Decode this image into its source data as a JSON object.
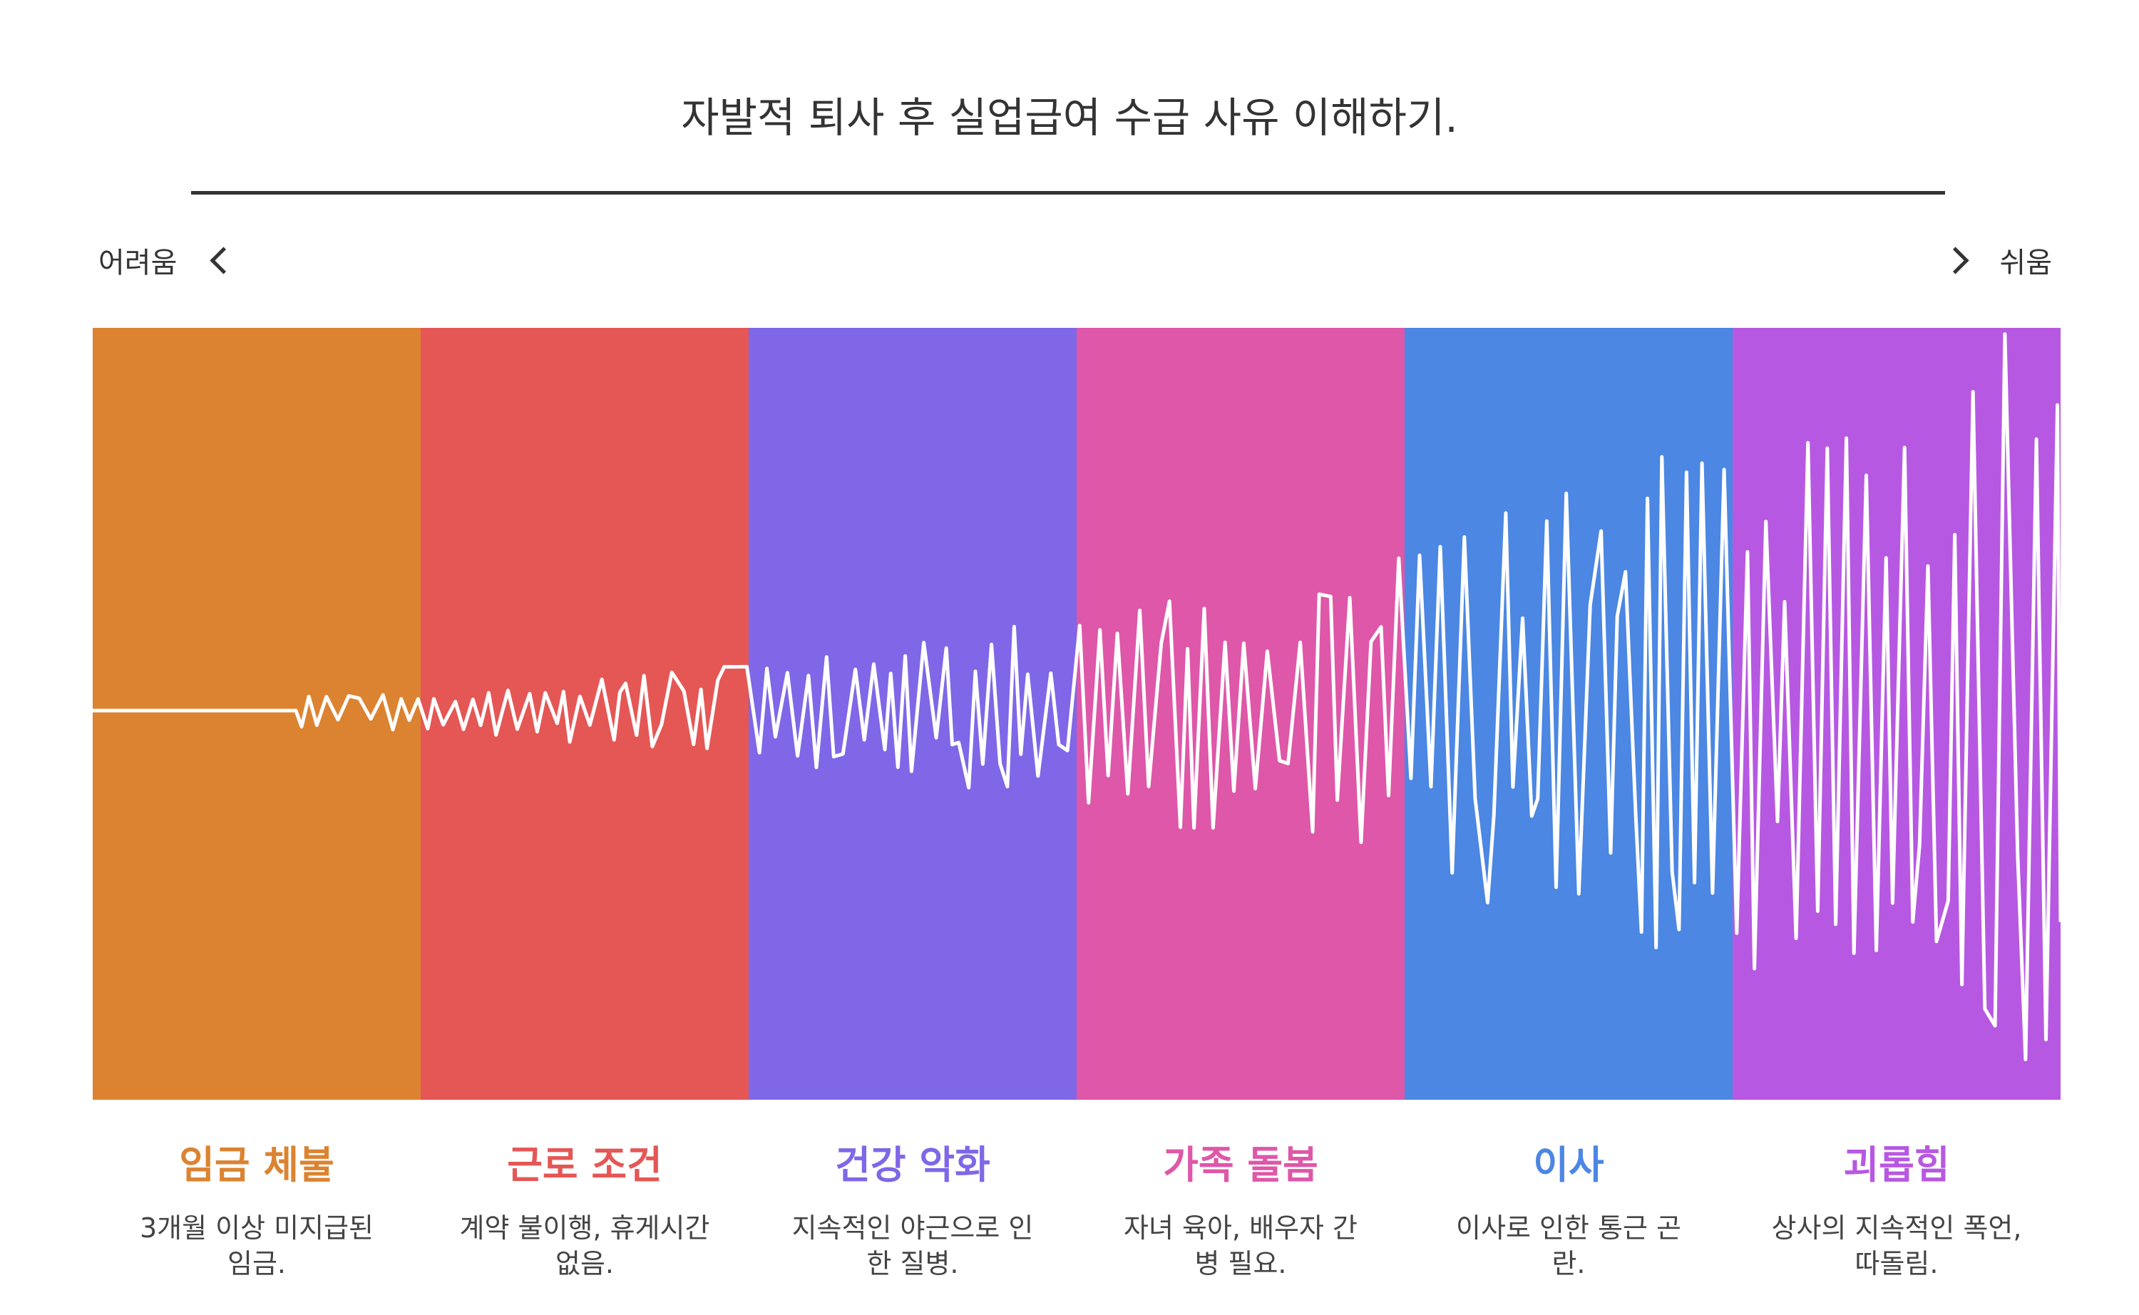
{
  "title": "자발적 퇴사 후 실업급여 수급 사유 이해하기.",
  "scale": {
    "left_label": "어려움",
    "right_label": "쉬움"
  },
  "wave_color": "#ffffff",
  "categories": [
    {
      "title": "임금 체불",
      "desc": "3개월 이상 미지급된 임금.",
      "color": "#DC8331"
    },
    {
      "title": "근로 조건",
      "desc": "계약 불이행, 휴게시간 없음.",
      "color": "#E45755"
    },
    {
      "title": "건강 악화",
      "desc": "지속적인 야근으로 인한 질병.",
      "color": "#7F67E7"
    },
    {
      "title": "가족 돌봄",
      "desc": "자녀 육아, 배우자 간병 필요.",
      "color": "#DE57A8"
    },
    {
      "title": "이사",
      "desc": "이사로 인한 통근 곤란.",
      "color": "#4B87E3"
    },
    {
      "title": "괴롭힘",
      "desc": "상사의 지속적인 폭언, 따돌림.",
      "color": "#B758E2"
    }
  ]
}
